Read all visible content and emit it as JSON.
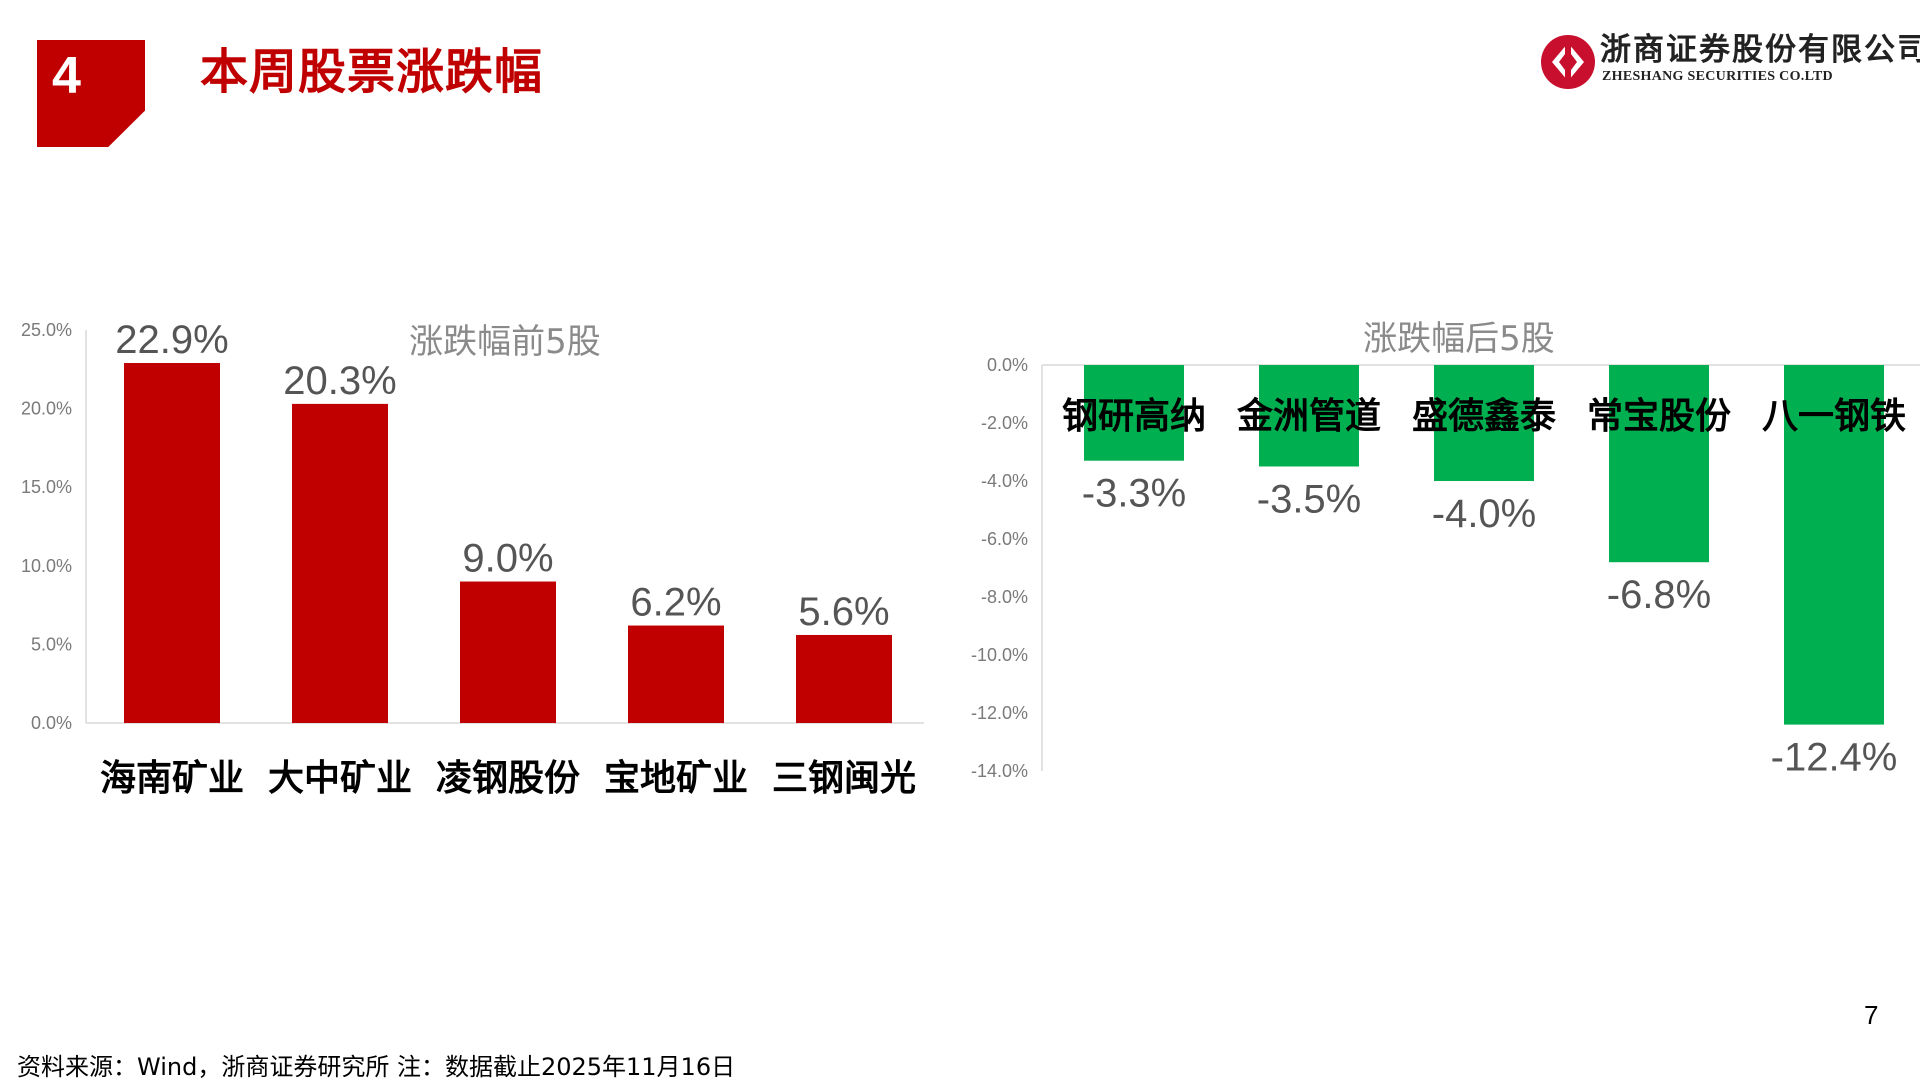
{
  "header": {
    "section_number": "4",
    "title": "本周股票涨跌幅"
  },
  "logo": {
    "name_cn": "浙商证券股份有限公司",
    "name_en": "ZHESHANG SECURITIES CO.LTD"
  },
  "chart_data": [
    {
      "type": "bar",
      "title": "涨跌幅前5股",
      "categories": [
        "海南矿业",
        "大中矿业",
        "凌钢股份",
        "宝地矿业",
        "三钢闽光"
      ],
      "values": [
        22.9,
        20.3,
        9.0,
        6.2,
        5.6
      ],
      "value_labels": [
        "22.9%",
        "20.3%",
        "9.0%",
        "6.2%",
        "5.6%"
      ],
      "ylim": [
        0,
        25
      ],
      "ticks": [
        "0.0%",
        "5.0%",
        "10.0%",
        "15.0%",
        "20.0%",
        "25.0%"
      ],
      "grid": false,
      "bar_color": "#c00000"
    },
    {
      "type": "bar",
      "title": "涨跌幅后5股",
      "categories": [
        "钢研高纳",
        "金洲管道",
        "盛德鑫泰",
        "常宝股份",
        "八一钢铁"
      ],
      "values": [
        -3.3,
        -3.5,
        -4.0,
        -6.8,
        -12.4
      ],
      "value_labels": [
        "-3.3%",
        "-3.5%",
        "-4.0%",
        "-6.8%",
        "-12.4%"
      ],
      "ylim": [
        -14,
        0
      ],
      "ticks": [
        "0.0%",
        "-2.0%",
        "-4.0%",
        "-6.0%",
        "-8.0%",
        "-10.0%",
        "-12.0%",
        "-14.0%"
      ],
      "grid": false,
      "bar_color": "#00b050"
    }
  ],
  "footer": {
    "source": "资料来源：Wind，浙商证券研究所    注：数据截止2025年11月16日",
    "page_number": "7"
  }
}
